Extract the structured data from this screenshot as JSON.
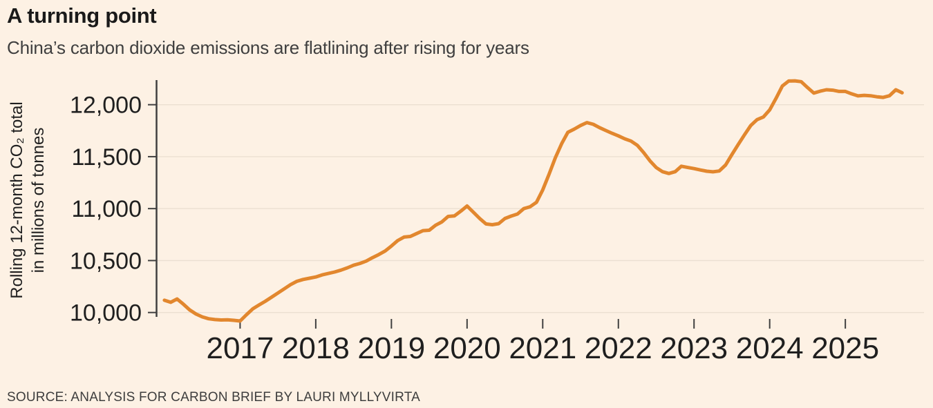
{
  "chart_data": {
    "type": "line",
    "title": "A turning point",
    "subtitle": "China’s carbon dioxide emissions are flatlining after rising for years",
    "ylabel_line1": "Rolling 12-month CO₂ total",
    "ylabel_line2": "in millions of tonnes",
    "source": "SOURCE: ANALYSIS FOR CARBON BRIEF BY LAURI MYLLYVIRTA",
    "x_tick_years": [
      2017,
      2018,
      2019,
      2020,
      2021,
      2022,
      2023,
      2024,
      2025
    ],
    "x_tick_labels": [
      "2017",
      "2018",
      "2019",
      "2020",
      "2021",
      "2022",
      "2023",
      "2024",
      "2025"
    ],
    "y_ticks": [
      10000,
      10500,
      11000,
      11500,
      12000
    ],
    "y_tick_labels": [
      "10,000",
      "10,500",
      "11,000",
      "11,500",
      "12,000"
    ],
    "xlim": [
      2015.9,
      2026.04
    ],
    "ylim": [
      9958,
      12237
    ],
    "grid": "horizontal",
    "legend": "none",
    "colors": {
      "line": "#e2872e",
      "background": "#fdf1e4",
      "axis": "#3f3f3f",
      "gridline": "#ebdfd1"
    },
    "series": [
      {
        "points": [
          [
            2016.0,
            10118
          ],
          [
            2016.083,
            10098
          ],
          [
            2016.167,
            10130
          ],
          [
            2016.25,
            10080
          ],
          [
            2016.333,
            10025
          ],
          [
            2016.417,
            9985
          ],
          [
            2016.5,
            9958
          ],
          [
            2016.583,
            9940
          ],
          [
            2016.667,
            9932
          ],
          [
            2016.75,
            9928
          ],
          [
            2016.833,
            9930
          ],
          [
            2016.917,
            9925
          ],
          [
            2017.0,
            9918
          ],
          [
            2017.083,
            9978
          ],
          [
            2017.167,
            10035
          ],
          [
            2017.25,
            10072
          ],
          [
            2017.333,
            10108
          ],
          [
            2017.417,
            10148
          ],
          [
            2017.5,
            10188
          ],
          [
            2017.583,
            10228
          ],
          [
            2017.667,
            10268
          ],
          [
            2017.75,
            10300
          ],
          [
            2017.833,
            10318
          ],
          [
            2017.917,
            10330
          ],
          [
            2018.0,
            10342
          ],
          [
            2018.083,
            10362
          ],
          [
            2018.167,
            10376
          ],
          [
            2018.25,
            10390
          ],
          [
            2018.333,
            10408
          ],
          [
            2018.417,
            10430
          ],
          [
            2018.5,
            10455
          ],
          [
            2018.583,
            10472
          ],
          [
            2018.667,
            10495
          ],
          [
            2018.75,
            10528
          ],
          [
            2018.833,
            10558
          ],
          [
            2018.917,
            10592
          ],
          [
            2019.0,
            10640
          ],
          [
            2019.083,
            10692
          ],
          [
            2019.167,
            10726
          ],
          [
            2019.25,
            10732
          ],
          [
            2019.333,
            10760
          ],
          [
            2019.417,
            10788
          ],
          [
            2019.5,
            10792
          ],
          [
            2019.583,
            10840
          ],
          [
            2019.667,
            10872
          ],
          [
            2019.75,
            10925
          ],
          [
            2019.833,
            10930
          ],
          [
            2019.917,
            10975
          ],
          [
            2020.0,
            11025
          ],
          [
            2020.083,
            10965
          ],
          [
            2020.167,
            10905
          ],
          [
            2020.25,
            10852
          ],
          [
            2020.333,
            10845
          ],
          [
            2020.417,
            10855
          ],
          [
            2020.5,
            10905
          ],
          [
            2020.583,
            10928
          ],
          [
            2020.667,
            10948
          ],
          [
            2020.75,
            11000
          ],
          [
            2020.833,
            11018
          ],
          [
            2020.917,
            11060
          ],
          [
            2021.0,
            11180
          ],
          [
            2021.083,
            11330
          ],
          [
            2021.167,
            11490
          ],
          [
            2021.25,
            11625
          ],
          [
            2021.333,
            11735
          ],
          [
            2021.417,
            11765
          ],
          [
            2021.5,
            11800
          ],
          [
            2021.583,
            11828
          ],
          [
            2021.667,
            11812
          ],
          [
            2021.75,
            11780
          ],
          [
            2021.833,
            11752
          ],
          [
            2021.917,
            11725
          ],
          [
            2022.0,
            11700
          ],
          [
            2022.083,
            11672
          ],
          [
            2022.167,
            11650
          ],
          [
            2022.25,
            11610
          ],
          [
            2022.333,
            11540
          ],
          [
            2022.417,
            11460
          ],
          [
            2022.5,
            11395
          ],
          [
            2022.583,
            11355
          ],
          [
            2022.667,
            11338
          ],
          [
            2022.75,
            11355
          ],
          [
            2022.833,
            11408
          ],
          [
            2022.917,
            11396
          ],
          [
            2023.0,
            11385
          ],
          [
            2023.083,
            11372
          ],
          [
            2023.167,
            11360
          ],
          [
            2023.25,
            11354
          ],
          [
            2023.333,
            11362
          ],
          [
            2023.417,
            11420
          ],
          [
            2023.5,
            11520
          ],
          [
            2023.583,
            11615
          ],
          [
            2023.667,
            11710
          ],
          [
            2023.75,
            11800
          ],
          [
            2023.833,
            11856
          ],
          [
            2023.917,
            11882
          ],
          [
            2024.0,
            11950
          ],
          [
            2024.083,
            12060
          ],
          [
            2024.167,
            12180
          ],
          [
            2024.25,
            12228
          ],
          [
            2024.333,
            12230
          ],
          [
            2024.417,
            12222
          ],
          [
            2024.5,
            12165
          ],
          [
            2024.583,
            12112
          ],
          [
            2024.667,
            12130
          ],
          [
            2024.75,
            12144
          ],
          [
            2024.833,
            12140
          ],
          [
            2024.917,
            12128
          ],
          [
            2025.0,
            12128
          ],
          [
            2025.083,
            12105
          ],
          [
            2025.167,
            12085
          ],
          [
            2025.25,
            12090
          ],
          [
            2025.333,
            12086
          ],
          [
            2025.417,
            12076
          ],
          [
            2025.5,
            12070
          ],
          [
            2025.583,
            12086
          ],
          [
            2025.667,
            12144
          ],
          [
            2025.75,
            12115
          ]
        ]
      }
    ]
  }
}
